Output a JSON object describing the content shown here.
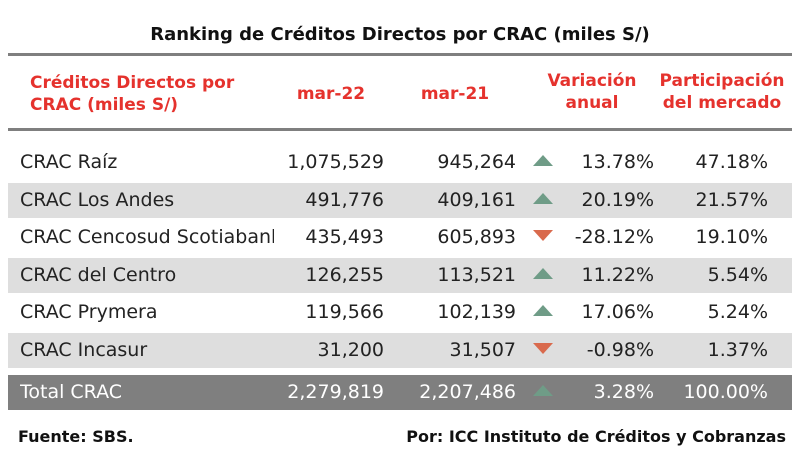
{
  "chart_data": {
    "type": "table",
    "title": "Ranking de Créditos Directos por CRAC (miles S/)",
    "headers": {
      "name_line1": "Créditos Directos por",
      "name_line2": "CRAC (miles S/)",
      "m22": "mar-22",
      "m21": "mar-21",
      "var_line1": "Variación",
      "var_line2": "anual",
      "share_line1": "Participación",
      "share_line2": "del mercado"
    },
    "rows": [
      {
        "name": "CRAC Raíz",
        "m22": "1,075,529",
        "m21": "945,264",
        "trend": "up",
        "var": "13.78%",
        "share": "47.18%"
      },
      {
        "name": "CRAC Los Andes",
        "m22": "491,776",
        "m21": "409,161",
        "trend": "up",
        "var": "20.19%",
        "share": "21.57%"
      },
      {
        "name": "CRAC Cencosud Scotiabank",
        "m22": "435,493",
        "m21": "605,893",
        "trend": "down",
        "var": "-28.12%",
        "share": "19.10%"
      },
      {
        "name": "CRAC del Centro",
        "m22": "126,255",
        "m21": "113,521",
        "trend": "up",
        "var": "11.22%",
        "share": "5.54%"
      },
      {
        "name": "CRAC Prymera",
        "m22": "119,566",
        "m21": "102,139",
        "trend": "up",
        "var": "17.06%",
        "share": "5.24%"
      },
      {
        "name": "CRAC Incasur",
        "m22": "31,200",
        "m21": "31,507",
        "trend": "down",
        "var": "-0.98%",
        "share": "1.37%"
      }
    ],
    "total": {
      "name": "Total CRAC",
      "m22": "2,279,819",
      "m21": "2,207,486",
      "trend": "up",
      "var": "3.28%",
      "share": "100.00%"
    },
    "colors": {
      "header_text": "#e5322d",
      "up_arrow": "#6f9c87",
      "down_arrow": "#d96a4d",
      "total_row": "#7f7f7f",
      "shade_row": "#dedede"
    }
  },
  "footer": {
    "source": "Fuente: SBS.",
    "credit": "Por: ICC Instituto de Créditos y Cobranzas"
  }
}
